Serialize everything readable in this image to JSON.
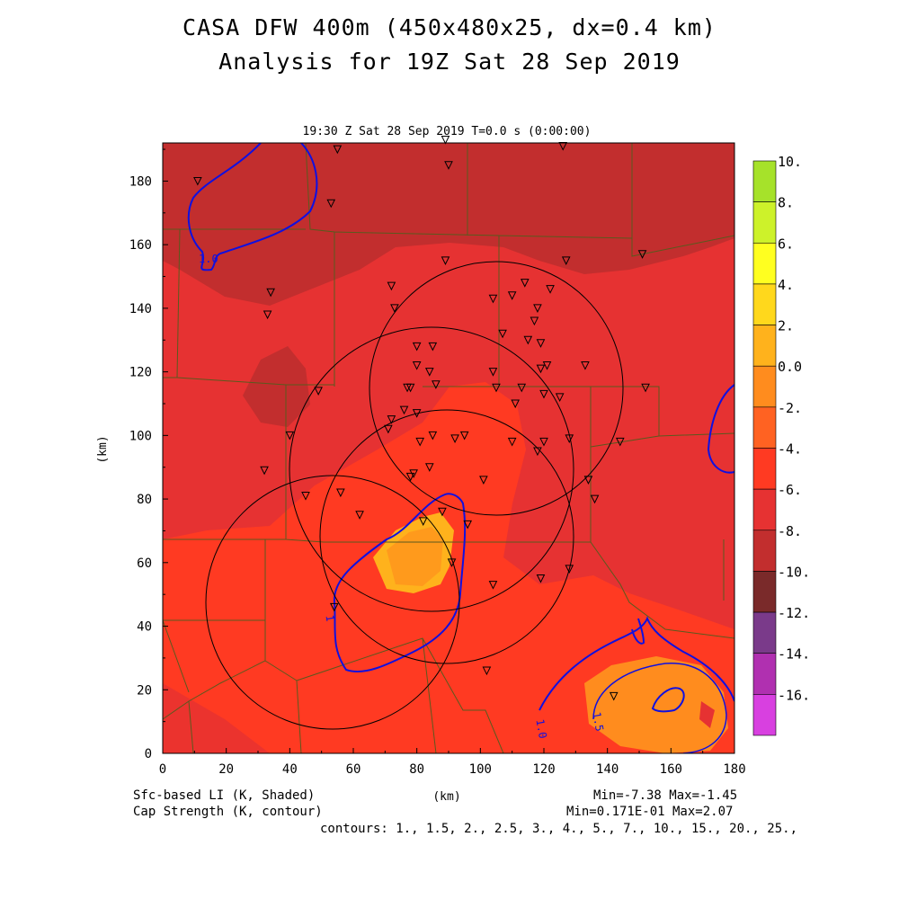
{
  "title_line1": "CASA DFW 400m (450x480x25, dx=0.4 km)",
  "title_line2": "Analysis for 19Z Sat 28 Sep 2019",
  "plot_time_label": "19:30 Z Sat 28 Sep 2019    T=0.0 s (0:00:00)",
  "x_axis": {
    "label": "(km)",
    "min": 0,
    "max": 180,
    "ticks": [
      "0",
      "20",
      "40",
      "60",
      "80",
      "100",
      "120",
      "140",
      "160",
      "180"
    ]
  },
  "y_axis": {
    "label": "(km)",
    "min": 0,
    "max": 192,
    "ticks": [
      "0",
      "20",
      "40",
      "60",
      "80",
      "100",
      "120",
      "140",
      "160",
      "180"
    ]
  },
  "colorbar": {
    "labels": [
      "10.",
      "8.",
      "6.",
      "4.",
      "2.",
      "0.0",
      "-2.",
      "-4.",
      "-6.",
      "-8.",
      "-10.",
      "-12.",
      "-14.",
      "-16."
    ],
    "colors": [
      "#a6e22a",
      "#cdf22a",
      "#ffff20",
      "#ffd81c",
      "#ffb21c",
      "#ff8c1e",
      "#ff6222",
      "#ff3a22",
      "#e63232",
      "#c22e2e",
      "#7a2a2a",
      "#7a3a8a",
      "#b030b0",
      "#d840e0"
    ]
  },
  "contour_labels": [
    "1.0",
    "1.5",
    "1.0",
    "1.5",
    "1",
    "1"
  ],
  "footer": {
    "left1": "Sfc-based LI (K, Shaded)",
    "left2": "Cap Strength (K, contour)",
    "center": "(km)",
    "right1": "Min=-7.38 Max=-1.45",
    "right2": "Min=0.171E-01 Max=2.07",
    "contours": "contours: 1., 1.5, 2., 2.5, 3., 4., 5., 7., 10., 15., 20., 25.,"
  },
  "stations": [
    [
      11,
      180
    ],
    [
      55,
      190
    ],
    [
      89,
      193
    ],
    [
      90,
      185
    ],
    [
      126,
      191
    ],
    [
      53,
      173
    ],
    [
      89,
      155
    ],
    [
      34,
      145
    ],
    [
      33,
      138
    ],
    [
      72,
      147
    ],
    [
      73,
      140
    ],
    [
      80,
      128
    ],
    [
      85,
      128
    ],
    [
      80,
      122
    ],
    [
      84,
      120
    ],
    [
      86,
      116
    ],
    [
      77,
      115
    ],
    [
      78,
      115
    ],
    [
      49,
      114
    ],
    [
      40,
      100
    ],
    [
      32,
      89
    ],
    [
      45,
      81
    ],
    [
      56,
      82
    ],
    [
      62,
      75
    ],
    [
      76,
      108
    ],
    [
      80,
      107
    ],
    [
      72,
      105
    ],
    [
      71,
      102
    ],
    [
      81,
      98
    ],
    [
      84,
      90
    ],
    [
      79,
      88
    ],
    [
      78,
      87
    ],
    [
      92,
      99
    ],
    [
      95,
      100
    ],
    [
      101,
      86
    ],
    [
      85,
      100
    ],
    [
      104,
      143
    ],
    [
      110,
      144
    ],
    [
      114,
      148
    ],
    [
      118,
      140
    ],
    [
      122,
      146
    ],
    [
      117,
      136
    ],
    [
      107,
      132
    ],
    [
      115,
      130
    ],
    [
      119,
      129
    ],
    [
      121,
      122
    ],
    [
      119,
      121
    ],
    [
      113,
      115
    ],
    [
      105,
      115
    ],
    [
      111,
      110
    ],
    [
      120,
      113
    ],
    [
      104,
      120
    ],
    [
      125,
      112
    ],
    [
      110,
      98
    ],
    [
      118,
      95
    ],
    [
      120,
      98
    ],
    [
      128,
      99
    ],
    [
      134,
      86
    ],
    [
      136,
      80
    ],
    [
      144,
      98
    ],
    [
      152,
      115
    ],
    [
      133,
      122
    ],
    [
      127,
      155
    ],
    [
      151,
      157
    ],
    [
      91,
      60
    ],
    [
      96,
      72
    ],
    [
      82,
      73
    ],
    [
      54,
      46
    ],
    [
      104,
      53
    ],
    [
      119,
      55
    ],
    [
      128,
      58
    ],
    [
      102,
      26
    ],
    [
      142,
      18
    ],
    [
      88,
      76
    ]
  ]
}
